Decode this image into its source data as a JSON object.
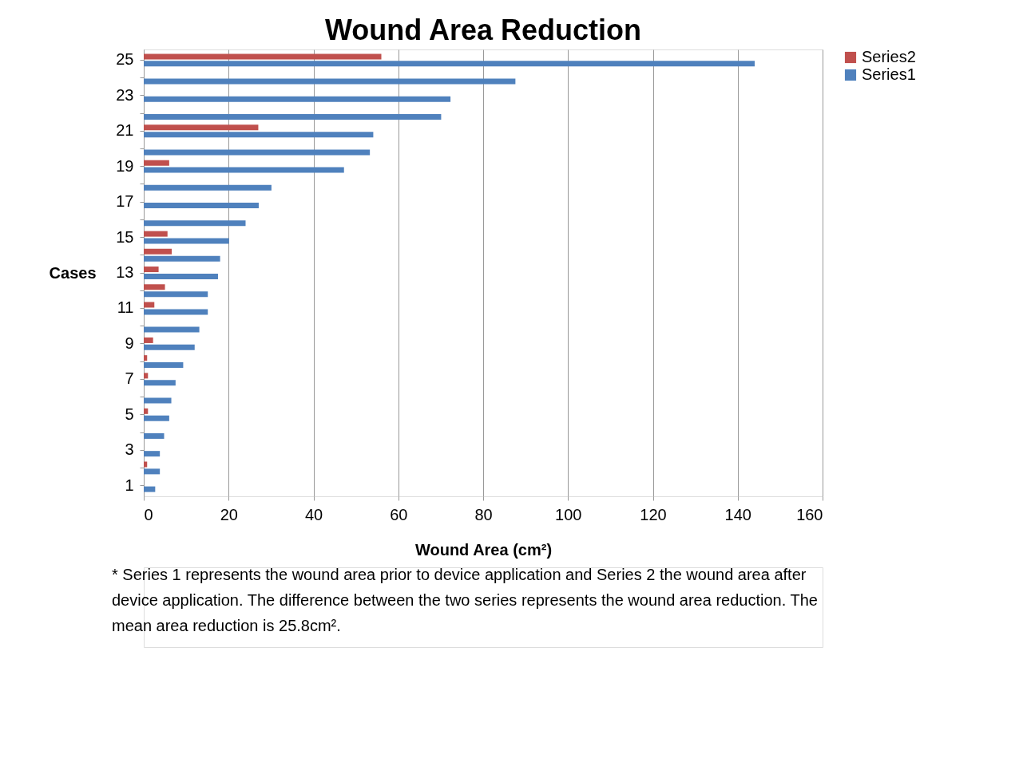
{
  "chart_data": {
    "type": "bar",
    "orientation": "horizontal",
    "title": "Wound Area Reduction",
    "xlabel": "Wound Area (cm²)",
    "ylabel": "Cases",
    "categories": [
      "25",
      null,
      "23",
      null,
      "21",
      null,
      "19",
      null,
      "17",
      null,
      "15",
      null,
      "13",
      null,
      "11",
      null,
      "9",
      null,
      "7",
      null,
      "5",
      null,
      "3",
      null,
      "1"
    ],
    "series": [
      {
        "name": "Series1",
        "color": "#4f81bd",
        "values": [
          144.0,
          87.6,
          72.3,
          70.1,
          54.1,
          53.3,
          47.2,
          30.1,
          27.1,
          24.0,
          20.1,
          18.0,
          17.5,
          15.1,
          15.1,
          13.1,
          12.0,
          9.3,
          7.5,
          6.5,
          6.0,
          4.8,
          3.8,
          3.8,
          2.7
        ]
      },
      {
        "name": "Series2",
        "color": "#c0504d",
        "values": [
          56.0,
          null,
          null,
          null,
          27.0,
          null,
          6.0,
          null,
          null,
          null,
          5.6,
          6.6,
          3.5,
          5.0,
          2.5,
          null,
          2.2,
          0.8,
          1.0,
          null,
          1.0,
          null,
          null,
          0.8,
          null
        ]
      }
    ],
    "xlim": [
      0,
      160
    ],
    "xticks": [
      0,
      20,
      40,
      60,
      80,
      100,
      120,
      140,
      160
    ],
    "grid": "x",
    "legend": "right",
    "annotations": [
      "* Series 1 represents the wound area prior to device application and Series 2 the wound area after device application.   The difference between the two series represents the wound area reduction. The mean area reduction is 25.8cm²."
    ]
  }
}
